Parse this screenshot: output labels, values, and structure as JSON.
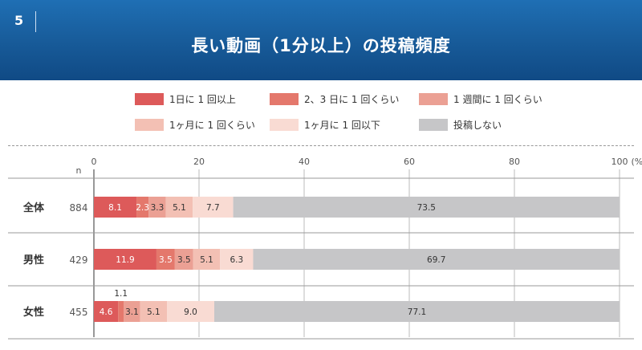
{
  "header": {
    "page_number": "5",
    "title": "長い動画（1分以上）の投稿頻度"
  },
  "legend": [
    {
      "label": "1日に 1 回以上",
      "color": "#dd5a5a"
    },
    {
      "label": "2、3 日に 1 回くらい",
      "color": "#e4786c"
    },
    {
      "label": "1 週間に 1 回くらい",
      "color": "#eba094"
    },
    {
      "label": "1ヶ月に 1 回くらい",
      "color": "#f3c0b4"
    },
    {
      "label": "1ヶ月に 1 回以下",
      "color": "#f9dbd3"
    },
    {
      "label": "投稿しない",
      "color": "#c6c6c8"
    }
  ],
  "chart_data": {
    "type": "bar",
    "stacked": true,
    "orientation": "horizontal",
    "xlim": [
      0,
      100
    ],
    "x_ticks": [
      "0",
      "20",
      "40",
      "60",
      "80",
      "100"
    ],
    "x_unit": "(%)",
    "n_label": "n",
    "categories": [
      "全体",
      "男性",
      "女性"
    ],
    "n": [
      "884",
      "429",
      "455"
    ],
    "series": [
      {
        "name": "1日に 1 回以上",
        "values": [
          8.1,
          11.9,
          4.6
        ]
      },
      {
        "name": "2、3 日に 1 回くらい",
        "values": [
          2.3,
          3.5,
          1.1
        ]
      },
      {
        "name": "1 週間に 1 回くらい",
        "values": [
          3.3,
          3.5,
          3.1
        ]
      },
      {
        "name": "1ヶ月に 1 回くらい",
        "values": [
          5.1,
          5.1,
          5.1
        ]
      },
      {
        "name": "1ヶ月に 1 回以下",
        "values": [
          7.7,
          6.3,
          9.0
        ]
      },
      {
        "name": "投稿しない",
        "values": [
          73.5,
          69.7,
          77.1
        ]
      }
    ],
    "value_labels": [
      [
        "8.1",
        "2.3",
        "3.3",
        "5.1",
        "7.7",
        "73.5"
      ],
      [
        "11.9",
        "3.5",
        "3.5",
        "5.1",
        "6.3",
        "69.7"
      ],
      [
        "4.6",
        "1.1",
        "3.1",
        "5.1",
        "9.0",
        "77.1"
      ]
    ],
    "grid": true
  }
}
